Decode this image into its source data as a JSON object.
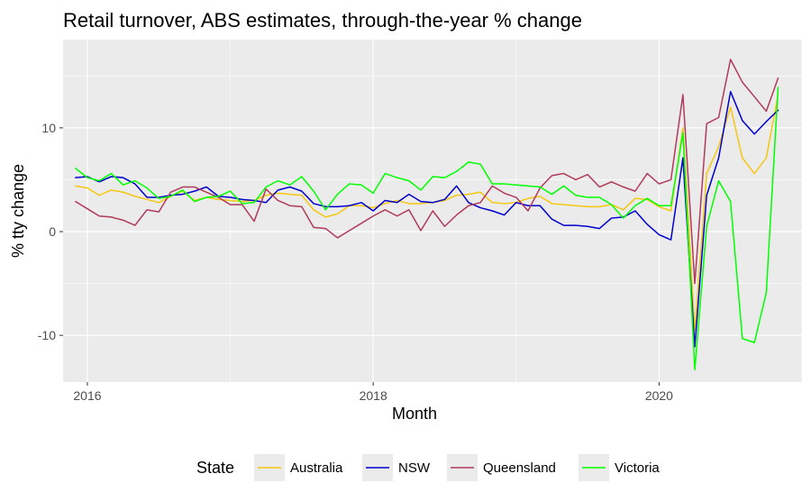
{
  "chart_data": {
    "type": "line",
    "title": "Retail turnover, ABS estimates, through-the-year % change",
    "xlabel": "Month",
    "ylabel": "% tty change",
    "xlim": [
      2015.83,
      2021.0
    ],
    "ylim": [
      -14.5,
      18.5
    ],
    "x_ticks": [
      2016,
      2018,
      2020
    ],
    "x_tick_labels": [
      "2016",
      "2018",
      "2020"
    ],
    "y_ticks": [
      -10,
      0,
      10
    ],
    "y_tick_labels": [
      "-10",
      "0",
      "10"
    ],
    "grid": true,
    "legend": {
      "title": "State",
      "position": "bottom"
    },
    "x": [
      2015.917,
      2016.0,
      2016.083,
      2016.167,
      2016.25,
      2016.333,
      2016.417,
      2016.5,
      2016.583,
      2016.667,
      2016.75,
      2016.833,
      2016.917,
      2017.0,
      2017.083,
      2017.167,
      2017.25,
      2017.333,
      2017.417,
      2017.5,
      2017.583,
      2017.667,
      2017.75,
      2017.833,
      2017.917,
      2018.0,
      2018.083,
      2018.167,
      2018.25,
      2018.333,
      2018.417,
      2018.5,
      2018.583,
      2018.667,
      2018.75,
      2018.833,
      2018.917,
      2019.0,
      2019.083,
      2019.167,
      2019.25,
      2019.333,
      2019.417,
      2019.5,
      2019.583,
      2019.667,
      2019.75,
      2019.833,
      2019.917,
      2020.0,
      2020.083,
      2020.167,
      2020.25,
      2020.333,
      2020.417,
      2020.5,
      2020.583,
      2020.667,
      2020.75,
      2020.833
    ],
    "series": [
      {
        "name": "Australia",
        "color": "#F5C710",
        "values": [
          4.4,
          4.2,
          3.5,
          4.0,
          3.8,
          3.4,
          3.1,
          2.8,
          3.4,
          3.9,
          3.0,
          3.3,
          3.1,
          3.0,
          2.9,
          3.0,
          3.5,
          3.7,
          3.6,
          3.5,
          2.1,
          1.4,
          1.7,
          2.5,
          2.5,
          2.3,
          2.7,
          3.0,
          2.7,
          2.7,
          2.8,
          3.0,
          3.5,
          3.6,
          3.8,
          2.8,
          2.7,
          2.8,
          3.2,
          3.4,
          2.7,
          2.6,
          2.5,
          2.4,
          2.4,
          2.6,
          2.1,
          3.2,
          3.1,
          2.4,
          2.0,
          10.0,
          -9.5,
          5.6,
          8.2,
          12.0,
          7.1,
          5.6,
          7.1,
          13.2
        ]
      },
      {
        "name": "NSW",
        "color": "#0000CD",
        "values": [
          5.2,
          5.3,
          4.8,
          5.3,
          5.2,
          4.6,
          3.3,
          3.3,
          3.5,
          3.6,
          3.9,
          4.3,
          3.4,
          3.3,
          3.1,
          3.0,
          2.8,
          4.0,
          4.3,
          3.9,
          2.7,
          2.4,
          2.4,
          2.5,
          2.8,
          2.0,
          3.0,
          2.8,
          3.6,
          2.9,
          2.8,
          3.1,
          4.4,
          2.8,
          2.3,
          2.0,
          1.6,
          2.8,
          2.5,
          2.5,
          1.2,
          0.6,
          0.6,
          0.5,
          0.3,
          1.3,
          1.4,
          2.0,
          0.7,
          -0.3,
          -0.8,
          7.1,
          -11.1,
          3.5,
          7.1,
          13.5,
          10.7,
          9.4,
          10.6,
          11.7
        ]
      },
      {
        "name": "Queensland",
        "color": "#B03A5A",
        "values": [
          2.9,
          2.2,
          1.5,
          1.4,
          1.1,
          0.6,
          2.1,
          1.9,
          3.8,
          4.3,
          4.3,
          3.8,
          3.3,
          2.6,
          2.6,
          1.0,
          4.1,
          3.0,
          2.5,
          2.4,
          0.4,
          0.3,
          -0.6,
          0.1,
          0.8,
          1.5,
          2.1,
          1.5,
          2.1,
          0.1,
          2.0,
          0.5,
          1.6,
          2.5,
          2.8,
          4.4,
          3.7,
          3.3,
          2.0,
          4.2,
          5.4,
          5.6,
          5.0,
          5.5,
          4.3,
          4.8,
          4.3,
          3.9,
          5.6,
          4.6,
          5.0,
          13.2,
          -5.0,
          10.4,
          11.0,
          16.6,
          14.4,
          13.0,
          11.6,
          14.8
        ]
      },
      {
        "name": "Victoria",
        "color": "#00FF00",
        "values": [
          6.1,
          5.2,
          4.9,
          5.6,
          4.5,
          4.9,
          4.2,
          3.2,
          3.4,
          4.0,
          2.9,
          3.3,
          3.4,
          3.9,
          2.7,
          2.8,
          4.3,
          4.9,
          4.5,
          5.3,
          3.9,
          2.1,
          3.6,
          4.6,
          4.5,
          3.7,
          5.6,
          5.2,
          4.9,
          4.0,
          5.3,
          5.2,
          5.8,
          6.7,
          6.5,
          4.6,
          4.6,
          4.5,
          4.4,
          4.3,
          3.6,
          4.4,
          3.5,
          3.3,
          3.3,
          2.6,
          1.3,
          2.5,
          3.2,
          2.5,
          2.5,
          9.5,
          -13.3,
          0.5,
          4.9,
          2.9,
          -10.3,
          -10.7,
          -5.9,
          13.9
        ]
      }
    ]
  }
}
